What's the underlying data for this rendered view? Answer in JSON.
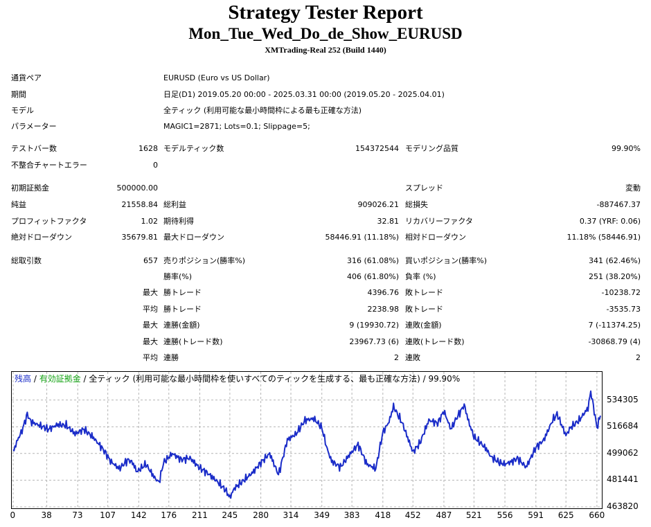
{
  "header": {
    "title": "Strategy Tester Report",
    "ea_name": "Mon_Tue_Wed_Do_de_Show_EURUSD",
    "server": "XMTrading-Real 252 (Build 1440)"
  },
  "settings": {
    "symbol_label": "通貨ペア",
    "symbol_value": "EURUSD (Euro vs US Dollar)",
    "period_label": "期間",
    "period_value": "日足(D1) 2019.05.20 00:00 - 2025.03.31 00:00 (2019.05.20 - 2025.04.01)",
    "model_label": "モデル",
    "model_value": "全ティック (利用可能な最小時間枠による最も正確な方法)",
    "params_label": "パラメーター",
    "params_value": "MAGIC1=2871; Lots=0.1; Slippage=5;"
  },
  "stats": {
    "bars_label": "テストバー数",
    "bars_value": "1628",
    "ticks_label": "モデルティック数",
    "ticks_value": "154372544",
    "quality_label": "モデリング品質",
    "quality_value": "99.90%",
    "mismatch_label": "不整合チャートエラー",
    "mismatch_value": "0",
    "deposit_label": "初期証拠金",
    "deposit_value": "500000.00",
    "spread_label": "スプレッド",
    "spread_value": "変動",
    "net_label": "純益",
    "net_value": "21558.84",
    "gross_profit_label": "総利益",
    "gross_profit_value": "909026.21",
    "gross_loss_label": "総損失",
    "gross_loss_value": "-887467.37",
    "pf_label": "プロフィットファクタ",
    "pf_value": "1.02",
    "expected_label": "期待利得",
    "expected_value": "32.81",
    "recovery_label": "リカバリーファクタ",
    "recovery_value": "0.37 (YRF: 0.06)",
    "abs_dd_label": "絶対ドローダウン",
    "abs_dd_value": "35679.81",
    "max_dd_label": "最大ドローダウン",
    "max_dd_value": "58446.91 (11.18%)",
    "rel_dd_label": "相対ドローダウン",
    "rel_dd_value": "11.18% (58446.91)",
    "trades_label": "総取引数",
    "trades_value": "657",
    "short_label": "売りポジション(勝率%)",
    "short_value": "316 (61.08%)",
    "long_label": "買いポジション(勝率%)",
    "long_value": "341 (62.46%)",
    "win_rate_label": "勝率(%)",
    "win_rate_value": "406 (61.80%)",
    "loss_rate_label": "負率 (%)",
    "loss_rate_value": "251 (38.20%)",
    "max_prefix": "最大",
    "avg_prefix": "平均",
    "largest_win_label": "勝トレード",
    "largest_win_value": "4396.76",
    "largest_loss_label": "敗トレード",
    "largest_loss_value": "-10238.72",
    "avg_win_label": "勝トレード",
    "avg_win_value": "2238.98",
    "avg_loss_label": "敗トレード",
    "avg_loss_value": "-3535.73",
    "max_cons_wins_amt_label": "連勝(金額)",
    "max_cons_wins_amt_value": "9 (19930.72)",
    "max_cons_losses_amt_label": "連敗(金額)",
    "max_cons_losses_amt_value": "7 (-11374.25)",
    "max_cons_wins_cnt_label": "連勝(トレード数)",
    "max_cons_wins_cnt_value": "23967.73 (6)",
    "max_cons_losses_cnt_label": "連敗(トレード数)",
    "max_cons_losses_cnt_value": "-30868.79 (4)",
    "avg_cons_wins_label": "連勝",
    "avg_cons_wins_value": "2",
    "avg_cons_losses_label": "連敗",
    "avg_cons_losses_value": "2"
  },
  "chart_data": {
    "type": "line",
    "legend": {
      "balance": "残高",
      "sep1": " / ",
      "equity": "有効証拠金",
      "rest": " / 全ティック (利用可能な最小時間枠を使いすべてのティックを生成する、最も正確な方法) / 99.90%"
    },
    "ylim": [
      463820,
      551926
    ],
    "xlim": [
      0,
      664
    ],
    "y_ticks": [
      "534305",
      "516684",
      "499062",
      "481441",
      "463820"
    ],
    "y_tick_values": [
      534305,
      516684,
      499062,
      481441,
      463820
    ],
    "x_ticks": [
      "0",
      "38",
      "73",
      "107",
      "142",
      "176",
      "211",
      "245",
      "280",
      "314",
      "349",
      "383",
      "418",
      "452",
      "487",
      "521",
      "556",
      "591",
      "625",
      "660"
    ],
    "x_tick_values": [
      0,
      38,
      73,
      107,
      142,
      176,
      211,
      245,
      280,
      314,
      349,
      383,
      418,
      452,
      487,
      521,
      556,
      591,
      625,
      660
    ],
    "grid": true,
    "colors": {
      "balance": "#1a2cc8",
      "equity": "#13a313",
      "grid": "#b4b4b4"
    },
    "series": [
      {
        "name": "残高",
        "x": [
          0,
          5,
          10,
          16,
          20,
          30,
          40,
          50,
          60,
          70,
          80,
          90,
          100,
          105,
          110,
          120,
          130,
          135,
          140,
          150,
          160,
          165,
          170,
          180,
          190,
          200,
          210,
          220,
          230,
          240,
          245,
          250,
          260,
          270,
          280,
          290,
          300,
          310,
          320,
          330,
          340,
          349,
          355,
          360,
          370,
          380,
          390,
          400,
          410,
          418,
          425,
          430,
          440,
          452,
          460,
          470,
          480,
          487,
          495,
          500,
          510,
          515,
          521,
          530,
          535,
          540,
          550,
          556,
          565,
          570,
          580,
          591,
          600,
          610,
          615,
          625,
          630,
          640,
          650,
          653,
          657,
          660,
          664
        ],
        "y": [
          500000,
          508000,
          514000,
          525000,
          520000,
          517500,
          515000,
          518000,
          517500,
          512000,
          515000,
          510000,
          503000,
          499000,
          494000,
          489000,
          495000,
          493000,
          487000,
          492000,
          483000,
          480000,
          493000,
          499000,
          495000,
          496000,
          490000,
          486000,
          481000,
          475000,
          470000,
          476000,
          481000,
          486000,
          493000,
          499000,
          485000,
          508000,
          512000,
          521000,
          522000,
          516000,
          502000,
          494000,
          490000,
          498000,
          505000,
          492000,
          489000,
          513000,
          520000,
          530000,
          519000,
          500000,
          506000,
          521000,
          519000,
          527000,
          515000,
          521000,
          531000,
          520000,
          510000,
          505000,
          502000,
          497000,
          493000,
          492000,
          494000,
          496000,
          490000,
          503000,
          508000,
          521000,
          525000,
          511000,
          516000,
          521000,
          529000,
          540000,
          527000,
          516000,
          524000
        ]
      }
    ]
  }
}
